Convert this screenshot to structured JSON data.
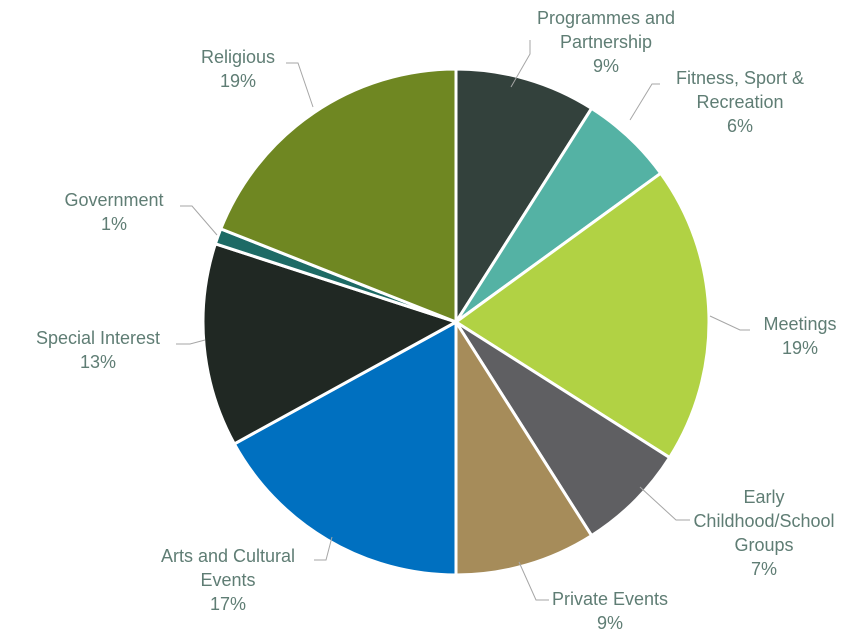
{
  "chart_data": {
    "type": "pie",
    "title": "",
    "start_angle_deg": 0,
    "direction": "clockwise",
    "legend": "none",
    "slices": [
      {
        "label": "Programmes and Partnership",
        "label_lines": [
          "Programmes and",
          "Partnership"
        ],
        "value": 9,
        "percent_text": "9%",
        "color": "#33413c"
      },
      {
        "label": "Fitness, Sport & Recreation",
        "label_lines": [
          "Fitness, Sport &",
          "Recreation"
        ],
        "value": 6,
        "percent_text": "6%",
        "color": "#54b2a4"
      },
      {
        "label": "Meetings",
        "label_lines": [
          "Meetings"
        ],
        "value": 19,
        "percent_text": "19%",
        "color": "#b1d244"
      },
      {
        "label": "Early Childhood/School Groups",
        "label_lines": [
          "Early",
          "Childhood/School",
          "Groups"
        ],
        "value": 7,
        "percent_text": "7%",
        "color": "#5f5f62"
      },
      {
        "label": "Private Events",
        "label_lines": [
          "Private Events"
        ],
        "value": 9,
        "percent_text": "9%",
        "color": "#a68c5a"
      },
      {
        "label": "Arts and Cultural Events",
        "label_lines": [
          "Arts and Cultural",
          "Events"
        ],
        "value": 17,
        "percent_text": "17%",
        "color": "#0070c0"
      },
      {
        "label": "Special Interest",
        "label_lines": [
          "Special Interest"
        ],
        "value": 13,
        "percent_text": "13%",
        "color": "#202823"
      },
      {
        "label": "Government",
        "label_lines": [
          "Government"
        ],
        "value": 1,
        "percent_text": "1%",
        "color": "#1d6a65"
      },
      {
        "label": "Religious",
        "label_lines": [
          "Religious"
        ],
        "value": 19,
        "percent_text": "19%",
        "color": "#6f8722"
      }
    ]
  }
}
